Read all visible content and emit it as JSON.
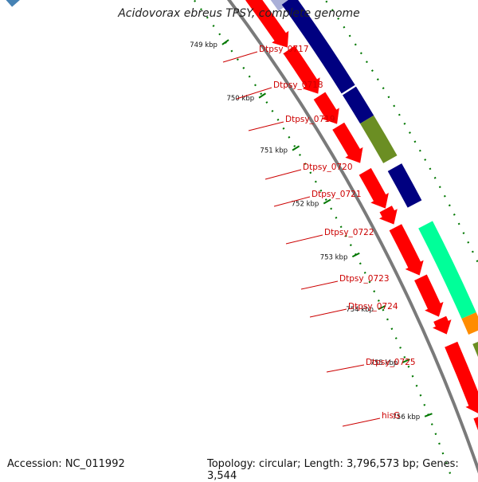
{
  "title": "Acidovorax ebreus TPSY, complete genome",
  "footer": {
    "accession": "Accession: NC_011992",
    "summary": "Topology: circular; Length: 3,796,573 bp; Genes: 3,544"
  },
  "scale_ticks": [
    "749 kbp",
    "750 kbp",
    "751 kbp",
    "752 kbp",
    "753 kbp",
    "754 kbp",
    "755 kbp",
    "756 kbp"
  ],
  "gene_labels": [
    "Dtpsy_0717",
    "Dtpsy_0718",
    "Dtpsy_0719",
    "Dtpsy_0720",
    "Dtpsy_0721",
    "Dtpsy_0722",
    "Dtpsy_0723",
    "Dtpsy_0724",
    "Dtpsy_0725",
    "hisG"
  ],
  "colors": {
    "backbone": "#7a7a7a",
    "gene_arrow": "#ff0000",
    "cog_navy": "#000080",
    "cog_olive": "#6b8e23",
    "cog_aquamarine": "#00ff99",
    "cog_orange": "#ff8c00",
    "cog_steelblue": "#4682b4",
    "tick": "#007700",
    "label": "#cc0000"
  }
}
